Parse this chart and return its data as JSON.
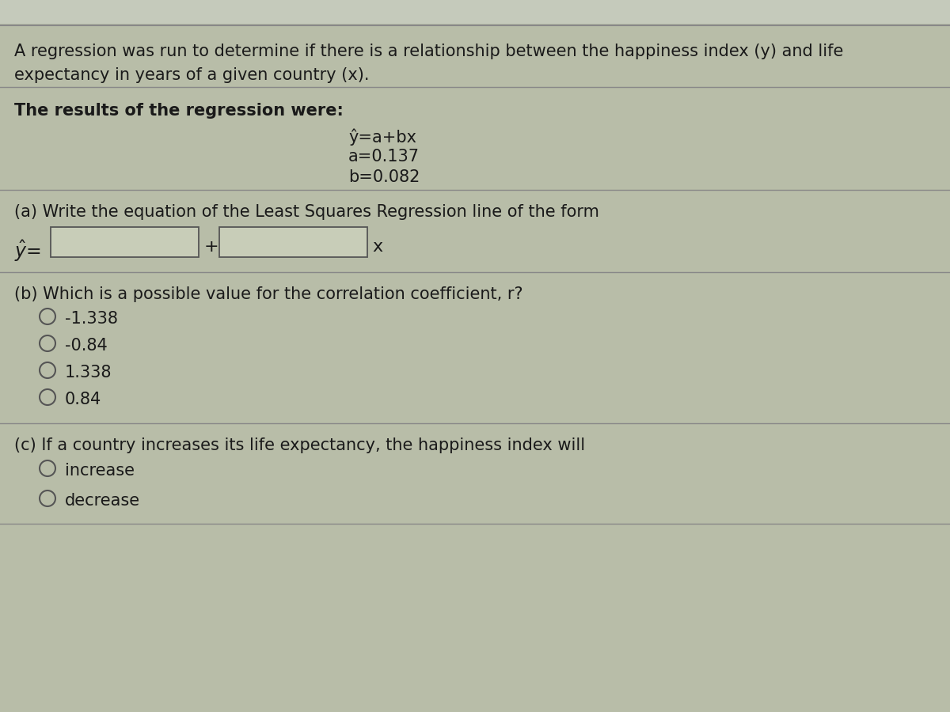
{
  "background_color": "#b8bda8",
  "text_color": "#1a1a1a",
  "title_line1": "A regression was run to determine if there is a relationship between the happiness index (y) and life",
  "title_line2": "expectancy in years of a given country (x).",
  "results_label": "The results of the regression were:",
  "eq_line1": "ŷ=a+bx",
  "eq_line2": "a=0.137",
  "eq_line3": "b=0.082",
  "part_a_label": "(a) Write the equation of the Least Squares Regression line of the form",
  "part_b_label": "(b) Which is a possible value for the correlation coefficient, r?",
  "part_b_options": [
    "-1.338",
    "-0.84",
    "1.338",
    "0.84"
  ],
  "part_c_label": "(c) If a country increases its life expectancy, the happiness index will",
  "part_c_options": [
    "increase",
    "decrease"
  ],
  "font_size_body": 15,
  "font_size_eq": 15,
  "font_size_title": 15,
  "box_facecolor": "#c8cdb8",
  "box_edgecolor": "#555555",
  "line_color": "#888888",
  "circle_color": "#555555"
}
